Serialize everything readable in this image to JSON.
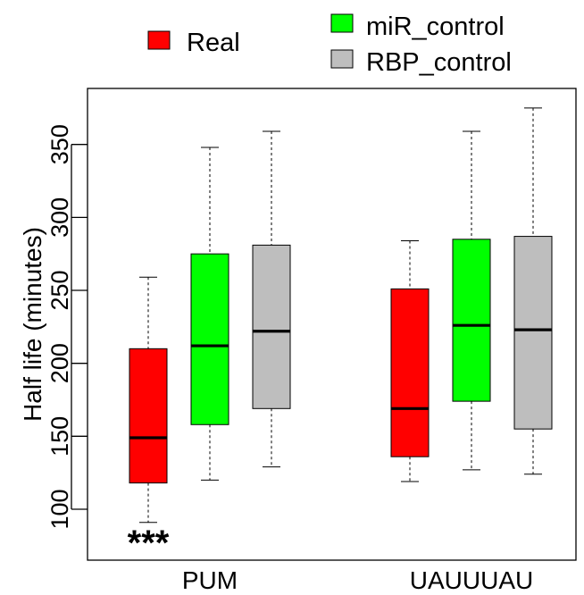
{
  "chart_data": {
    "type": "boxplot",
    "ylabel": "Half life (minutes)",
    "xlabel": "",
    "ylim": [
      80,
      378
    ],
    "yticks": [
      100,
      150,
      200,
      250,
      300,
      350
    ],
    "grid": false,
    "legend_position": "top",
    "groups": [
      {
        "label": "PUM",
        "annotation": "***"
      },
      {
        "label": "UAUUUAU",
        "annotation": ""
      }
    ],
    "series": [
      {
        "name": "Real",
        "color": "#ff0000",
        "boxes": [
          {
            "whisker_low": 91,
            "q1": 118,
            "median": 149,
            "q3": 210,
            "whisker_high": 259
          },
          {
            "whisker_low": 119,
            "q1": 136,
            "median": 169,
            "q3": 251,
            "whisker_high": 284
          }
        ]
      },
      {
        "name": "miR_control",
        "color": "#00ff00",
        "boxes": [
          {
            "whisker_low": 120,
            "q1": 158,
            "median": 212,
            "q3": 275,
            "whisker_high": 348
          },
          {
            "whisker_low": 127,
            "q1": 174,
            "median": 226,
            "q3": 285,
            "whisker_high": 359
          }
        ]
      },
      {
        "name": "RBP_control",
        "color": "#bebebe",
        "boxes": [
          {
            "whisker_low": 129,
            "q1": 169,
            "median": 222,
            "q3": 281,
            "whisker_high": 359
          },
          {
            "whisker_low": 124,
            "q1": 155,
            "median": 223,
            "q3": 287,
            "whisker_high": 375
          }
        ]
      }
    ]
  }
}
